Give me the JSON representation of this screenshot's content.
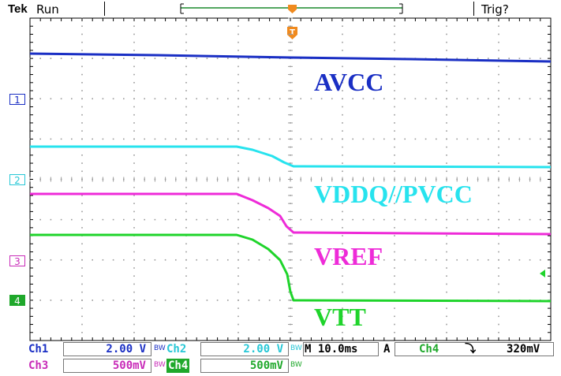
{
  "header": {
    "brand": "Tek",
    "run_state": "Run",
    "trigger_status": "Trig?"
  },
  "colors": {
    "ch1": "#1a2fc4",
    "ch2": "#27e3ee",
    "ch3": "#ee2bd8",
    "ch4": "#1fd42b",
    "grid": "#9a9a9a",
    "trigger_marker": "#f08a1e"
  },
  "traces": {
    "ch1_label": "AVCC",
    "ch2_label": "VDDQ//PVCC",
    "ch3_label": "VREF",
    "ch4_label": "VTT"
  },
  "channel_markers": {
    "ch1": "1",
    "ch2": "2",
    "ch3": "3",
    "ch4": "4"
  },
  "readout": {
    "ch1_name": "Ch1",
    "ch1_scale": "2.00 V",
    "ch2_name": "Ch2",
    "ch2_scale": "2.00 V",
    "ch3_name": "Ch3",
    "ch3_scale": "500mV",
    "ch4_name": "Ch4",
    "ch4_scale": "500mV",
    "bw_limit": "BW",
    "timebase": "M 10.0ms",
    "trigger_mode": "A",
    "trigger_source": "Ch4",
    "trigger_slope": "⤵",
    "trigger_level": "320mV"
  }
}
